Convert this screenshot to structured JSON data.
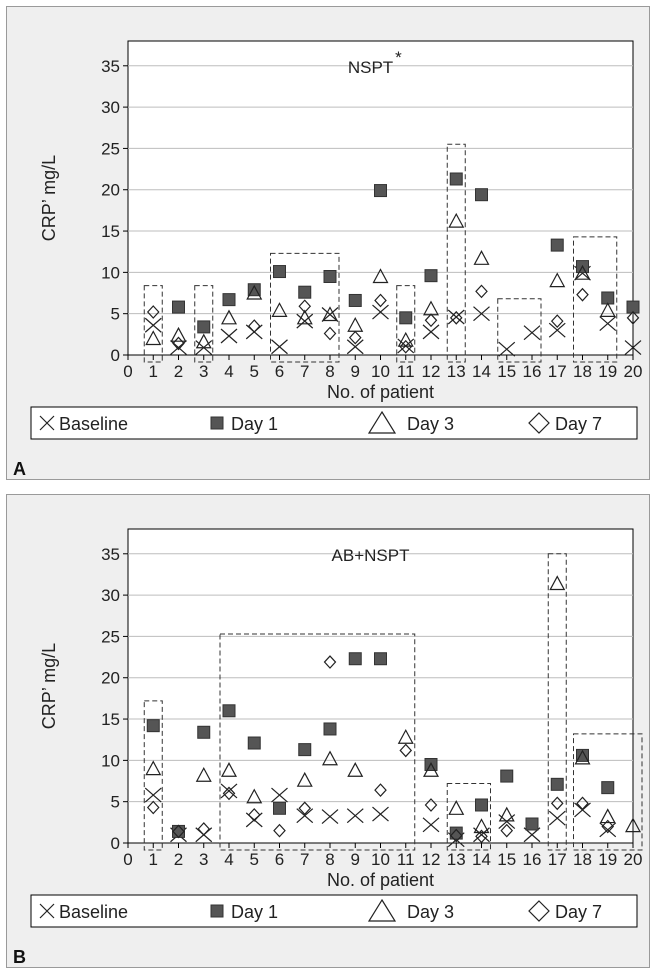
{
  "chart_data": [
    {
      "type": "scatter",
      "panel_label": "A",
      "title": "NSPT",
      "title_superscript": "*",
      "xlabel": "No. of patient",
      "ylabel": "CRP’ mg/L",
      "xlim": [
        0,
        20
      ],
      "ylim": [
        0,
        38
      ],
      "yticks": [
        0,
        5,
        10,
        15,
        20,
        25,
        30,
        35
      ],
      "xticks": [
        0,
        1,
        2,
        3,
        4,
        5,
        6,
        7,
        8,
        9,
        10,
        11,
        12,
        13,
        14,
        15,
        16,
        17,
        18,
        19,
        20
      ],
      "grid": "horizontal",
      "legend": {
        "placement": "bottom",
        "entries": [
          "Baseline",
          "Day 1",
          "Day 3",
          "Day 7"
        ]
      },
      "series": [
        {
          "name": "Baseline",
          "marker": "x",
          "x": [
            1,
            2,
            3,
            4,
            5,
            6,
            7,
            8,
            9,
            10,
            11,
            12,
            13,
            14,
            15,
            16,
            17,
            18,
            19,
            20
          ],
          "values": [
            3.6,
            0.9,
            0.9,
            2.3,
            2.8,
            1.0,
            4.1,
            4.9,
            1.0,
            5.2,
            1.1,
            2.8,
            4.6,
            5.0,
            0.7,
            2.7,
            3.0,
            9.9,
            3.8,
            0.9
          ]
        },
        {
          "name": "Day 1",
          "marker": "filled-square",
          "x": [
            2,
            3,
            4,
            5,
            6,
            7,
            8,
            9,
            10,
            11,
            12,
            13,
            14,
            17,
            18,
            19,
            20
          ],
          "values": [
            5.8,
            3.4,
            6.7,
            7.9,
            10.1,
            7.6,
            9.5,
            6.6,
            19.9,
            4.5,
            9.6,
            21.3,
            19.4,
            13.3,
            10.7,
            6.9,
            5.8
          ]
        },
        {
          "name": "Day 3",
          "marker": "triangle",
          "x": [
            1,
            2,
            3,
            4,
            5,
            6,
            7,
            8,
            9,
            10,
            11,
            12,
            13,
            14,
            17,
            18,
            19
          ],
          "values": [
            2.0,
            2.4,
            1.6,
            4.5,
            7.5,
            5.4,
            4.5,
            4.9,
            3.6,
            9.5,
            1.8,
            5.6,
            16.2,
            11.7,
            9.0,
            9.9,
            5.4
          ]
        },
        {
          "name": "Day 7",
          "marker": "diamond",
          "x": [
            1,
            2,
            5,
            7,
            8,
            9,
            10,
            11,
            12,
            13,
            14,
            17,
            18,
            20
          ],
          "values": [
            5.2,
            1.4,
            3.5,
            5.9,
            2.6,
            2.1,
            6.6,
            1.0,
            4.2,
            4.5,
            7.7,
            4.1,
            7.3,
            4.5
          ]
        }
      ],
      "groups": [
        [
          1,
          1
        ],
        [
          3,
          3
        ],
        [
          6,
          8
        ],
        [
          11,
          11
        ],
        [
          13,
          13
        ],
        [
          15,
          16
        ],
        [
          18,
          19
        ]
      ],
      "groups_top": [
        8.4,
        8.4,
        12.3,
        8.4,
        25.5,
        6.8,
        14.3
      ]
    },
    {
      "type": "scatter",
      "panel_label": "B",
      "title": "AB+NSPT",
      "xlabel": "No. of patient",
      "ylabel": "CRP’ mg/L",
      "xlim": [
        0,
        20
      ],
      "ylim": [
        0,
        38
      ],
      "yticks": [
        0,
        5,
        10,
        15,
        20,
        25,
        30,
        35
      ],
      "xticks": [
        0,
        1,
        2,
        3,
        4,
        5,
        6,
        7,
        8,
        9,
        10,
        11,
        12,
        13,
        14,
        15,
        16,
        17,
        18,
        19,
        20
      ],
      "grid": "horizontal",
      "legend": {
        "placement": "bottom",
        "entries": [
          "Baseline",
          "Day 1",
          "Day 3",
          "Day 7"
        ]
      },
      "series": [
        {
          "name": "Baseline",
          "marker": "x",
          "x": [
            1,
            2,
            3,
            4,
            5,
            6,
            7,
            8,
            9,
            10,
            12,
            13,
            14,
            15,
            16,
            17,
            18,
            19
          ],
          "values": [
            5.8,
            1.0,
            1.0,
            6.3,
            2.8,
            5.8,
            3.3,
            3.2,
            3.3,
            3.5,
            2.2,
            0.4,
            1.0,
            2.6,
            1.0,
            3.0,
            4.0,
            1.6
          ]
        },
        {
          "name": "Day 1",
          "marker": "filled-square",
          "x": [
            1,
            2,
            3,
            4,
            5,
            6,
            7,
            8,
            9,
            10,
            12,
            13,
            14,
            15,
            16,
            17,
            18,
            19
          ],
          "values": [
            14.2,
            1.4,
            13.4,
            16.0,
            12.1,
            4.2,
            11.3,
            13.8,
            22.3,
            22.3,
            9.5,
            1.2,
            4.6,
            8.1,
            2.3,
            7.1,
            10.6,
            6.7
          ]
        },
        {
          "name": "Day 3",
          "marker": "triangle",
          "x": [
            1,
            3,
            4,
            5,
            7,
            8,
            9,
            11,
            12,
            13,
            14,
            15,
            17,
            18,
            19,
            20
          ],
          "values": [
            9.0,
            8.2,
            8.8,
            5.6,
            7.6,
            10.2,
            8.8,
            12.8,
            8.8,
            4.2,
            2.0,
            3.4,
            31.4,
            10.3,
            3.2,
            2.1
          ]
        },
        {
          "name": "Day 7",
          "marker": "diamond",
          "x": [
            1,
            2,
            3,
            4,
            5,
            6,
            7,
            8,
            10,
            11,
            12,
            13,
            14,
            15,
            17,
            18,
            19
          ],
          "values": [
            4.3,
            1.4,
            1.7,
            6.0,
            3.4,
            1.5,
            4.2,
            21.9,
            6.4,
            11.2,
            4.6,
            0.9,
            0.8,
            1.5,
            4.8,
            4.8,
            2.0
          ]
        }
      ],
      "groups": [
        [
          1,
          1
        ],
        [
          4,
          11
        ],
        [
          13,
          14
        ],
        [
          17,
          17
        ],
        [
          18,
          20
        ]
      ],
      "groups_top": [
        17.2,
        25.3,
        7.2,
        35.0,
        13.2
      ]
    }
  ]
}
